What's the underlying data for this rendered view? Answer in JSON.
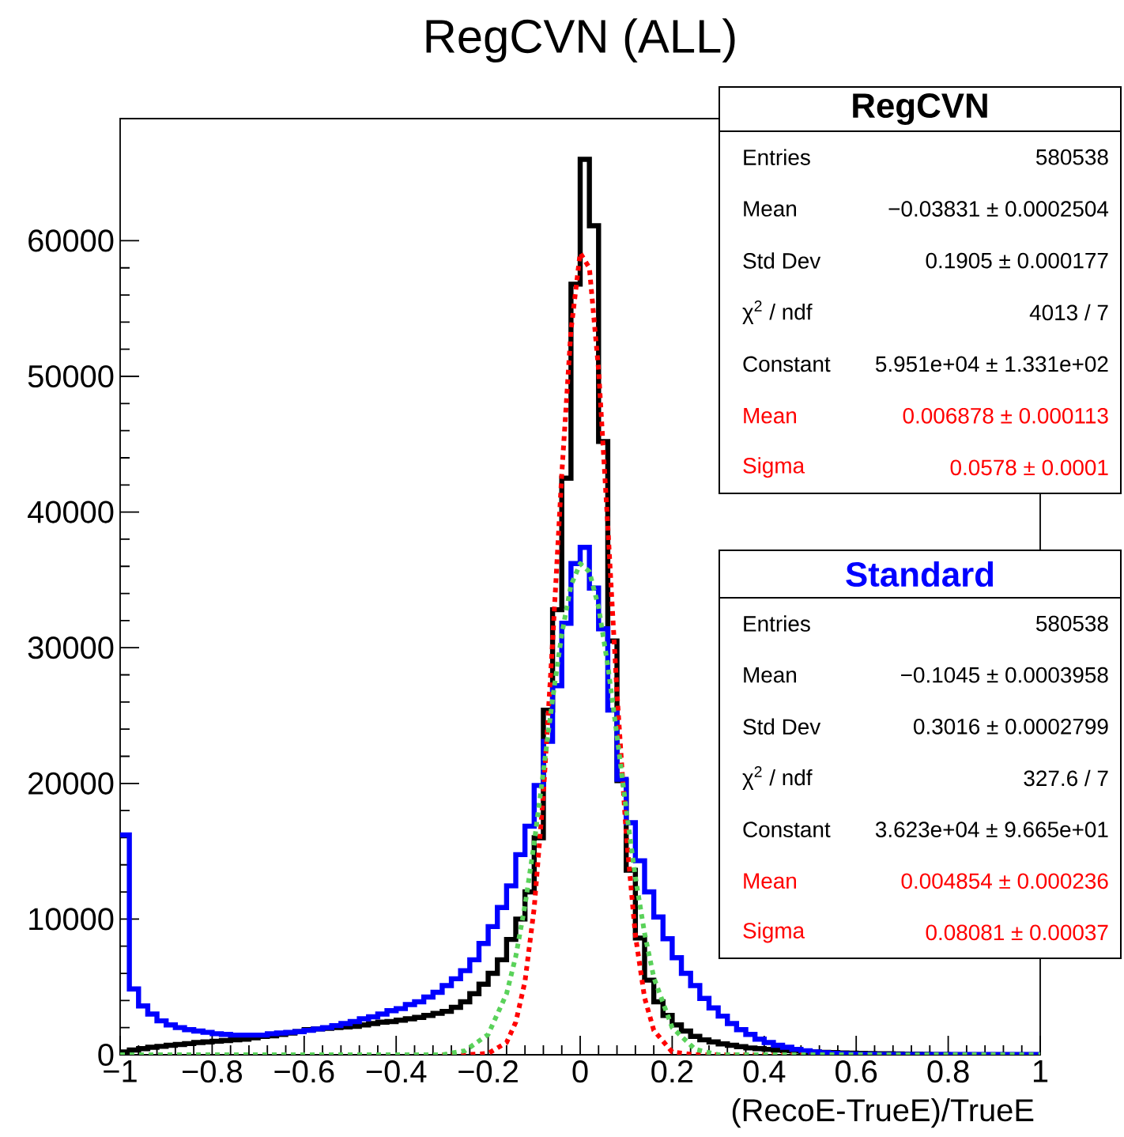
{
  "chart_data": {
    "type": "histogram",
    "title": "RegCVN (ALL)",
    "xlabel": "(RecoE-TrueE)/TrueE",
    "bins": [
      -1,
      -0.98,
      -0.96,
      -0.94,
      -0.92,
      -0.9,
      -0.88,
      -0.86,
      -0.84,
      -0.82,
      -0.8,
      -0.78,
      -0.76,
      -0.74,
      -0.72,
      -0.7,
      -0.68,
      -0.66,
      -0.64,
      -0.62,
      -0.6,
      -0.58,
      -0.56,
      -0.54,
      -0.52,
      -0.5,
      -0.48,
      -0.46,
      -0.44,
      -0.42,
      -0.4,
      -0.38,
      -0.36,
      -0.34,
      -0.32,
      -0.3,
      -0.28,
      -0.26,
      -0.24,
      -0.22,
      -0.2,
      -0.18,
      -0.16,
      -0.14,
      -0.12,
      -0.1,
      -0.08,
      -0.06,
      -0.04,
      -0.02,
      0,
      0.02,
      0.04,
      0.06,
      0.08,
      0.1,
      0.12,
      0.14,
      0.16,
      0.18,
      0.2,
      0.22,
      0.24,
      0.26,
      0.28,
      0.3,
      0.32,
      0.34,
      0.36,
      0.38,
      0.4,
      0.42,
      0.44,
      0.46,
      0.48,
      0.5,
      0.52,
      0.54,
      0.56,
      0.58,
      0.6,
      0.62,
      0.64,
      0.66,
      0.68,
      0.7,
      0.72,
      0.74,
      0.76,
      0.78,
      0.8,
      0.82,
      0.84,
      0.86,
      0.88,
      0.9,
      0.92,
      0.94,
      0.96,
      0.98,
      1
    ],
    "series": [
      {
        "name": "RegCVN",
        "color": "#000000",
        "values": [
          200,
          350,
          450,
          550,
          620,
          700,
          760,
          820,
          900,
          950,
          1000,
          1050,
          1100,
          1150,
          1250,
          1350,
          1400,
          1500,
          1600,
          1700,
          1850,
          1900,
          1950,
          2000,
          2050,
          2100,
          2200,
          2300,
          2400,
          2450,
          2550,
          2650,
          2750,
          2900,
          3050,
          3200,
          3500,
          3900,
          4500,
          5200,
          6000,
          7000,
          8500,
          10000,
          12000,
          16000,
          25400,
          32800,
          42500,
          56800,
          66000,
          61100,
          45200,
          30500,
          20200,
          13600,
          8600,
          5500,
          3900,
          2900,
          2200,
          1750,
          1350,
          1100,
          950,
          800,
          700,
          600,
          500,
          450,
          400,
          350,
          300,
          270,
          240,
          210,
          180,
          160,
          140,
          120,
          100,
          90,
          80,
          70,
          60,
          50,
          40,
          30,
          20,
          10,
          0,
          0,
          0,
          0,
          0,
          0,
          0,
          0,
          0,
          0
        ]
      },
      {
        "name": "Standard",
        "color": "#0000ff",
        "values": [
          16200,
          4850,
          3600,
          3000,
          2500,
          2200,
          2000,
          1850,
          1750,
          1650,
          1550,
          1500,
          1450,
          1450,
          1450,
          1450,
          1550,
          1600,
          1650,
          1700,
          1800,
          1900,
          2000,
          2150,
          2300,
          2450,
          2650,
          2800,
          3000,
          3250,
          3400,
          3700,
          3900,
          4250,
          4600,
          5100,
          5600,
          6200,
          7000,
          8200,
          9450,
          10850,
          12450,
          14750,
          16850,
          19850,
          23100,
          27200,
          31800,
          36200,
          37400,
          34400,
          31400,
          25400,
          20300,
          17100,
          14300,
          12000,
          10150,
          8550,
          7150,
          6000,
          5100,
          4150,
          3450,
          2850,
          2300,
          1850,
          1500,
          1150,
          900,
          700,
          550,
          400,
          300,
          200,
          150,
          100,
          70,
          50,
          30,
          30,
          20,
          20,
          20,
          20,
          20,
          20,
          20,
          20,
          10,
          10,
          10,
          10,
          10,
          10,
          10,
          10,
          10,
          10
        ]
      },
      {
        "type": "line",
        "color": "#ff0000",
        "line_style": "dotted",
        "x": [
          -0.3,
          -0.25,
          -0.2,
          -0.16,
          -0.14,
          -0.12,
          -0.1,
          -0.08,
          -0.06,
          -0.04,
          -0.02,
          0,
          0.02,
          0.04,
          0.06,
          0.08,
          0.1,
          0.12,
          0.14,
          0.16,
          0.2,
          0.25,
          0.3,
          0.5
        ],
        "values": [
          0,
          0,
          100,
          900,
          2400,
          5400,
          10800,
          19200,
          30400,
          42800,
          53400,
          59100,
          58000,
          50500,
          39000,
          26700,
          16300,
          8800,
          4200,
          1800,
          200,
          0,
          0,
          0
        ]
      },
      {
        "type": "line",
        "color": "#5ad25a",
        "line_style": "dotted",
        "x": [
          -1,
          -0.4,
          -0.3,
          -0.25,
          -0.2,
          -0.16,
          -0.14,
          -0.12,
          -0.1,
          -0.08,
          -0.06,
          -0.04,
          -0.02,
          0,
          0.02,
          0.04,
          0.06,
          0.08,
          0.1,
          0.12,
          0.14,
          0.16,
          0.2,
          0.25,
          0.3,
          0.4,
          1
        ],
        "values": [
          0,
          0,
          0,
          300,
          1500,
          4500,
          7250,
          11000,
          15600,
          20900,
          26200,
          31000,
          34600,
          36200,
          35600,
          33000,
          28700,
          23500,
          18100,
          13100,
          8950,
          5700,
          2000,
          400,
          0,
          0,
          0
        ]
      }
    ],
    "xlim": [
      -1,
      1
    ],
    "ylim": [
      0,
      69000
    ],
    "xticks": [
      {
        "value": -1,
        "label": "−1"
      },
      {
        "value": -0.8,
        "label": "−0.8"
      },
      {
        "value": -0.6,
        "label": "−0.6"
      },
      {
        "value": -0.4,
        "label": "−0.4"
      },
      {
        "value": -0.2,
        "label": "−0.2"
      },
      0,
      0.2,
      0.4,
      0.6,
      0.8,
      1
    ],
    "yticks": [
      0,
      10000,
      20000,
      30000,
      40000,
      50000,
      60000
    ],
    "annotations": [
      "Entries",
      "580538",
      "Mean",
      "−0.03831 ± 0.0002504",
      "Std Dev",
      "0.1905 ± 0.000177",
      "χ$^{2}$ / ndf",
      "4013 / 7",
      "Constant",
      "5.951e+04 ± 1.331e+02",
      "Mean",
      "0.006878 ± 0.000113",
      "Sigma",
      "0.0578 ± 0.0001",
      "Entries",
      "580538",
      "Mean",
      "−0.1045 ± 0.0003958",
      "Std Dev",
      "0.3016 ± 0.0002799",
      "χ$^{2}$ / ndf",
      "327.6 / 7",
      "Constant",
      "3.623e+04 ± 9.665e+01",
      "Mean",
      "0.004854 ± 0.000236",
      "Sigma",
      "0.08081 ± 0.00037"
    ]
  }
}
